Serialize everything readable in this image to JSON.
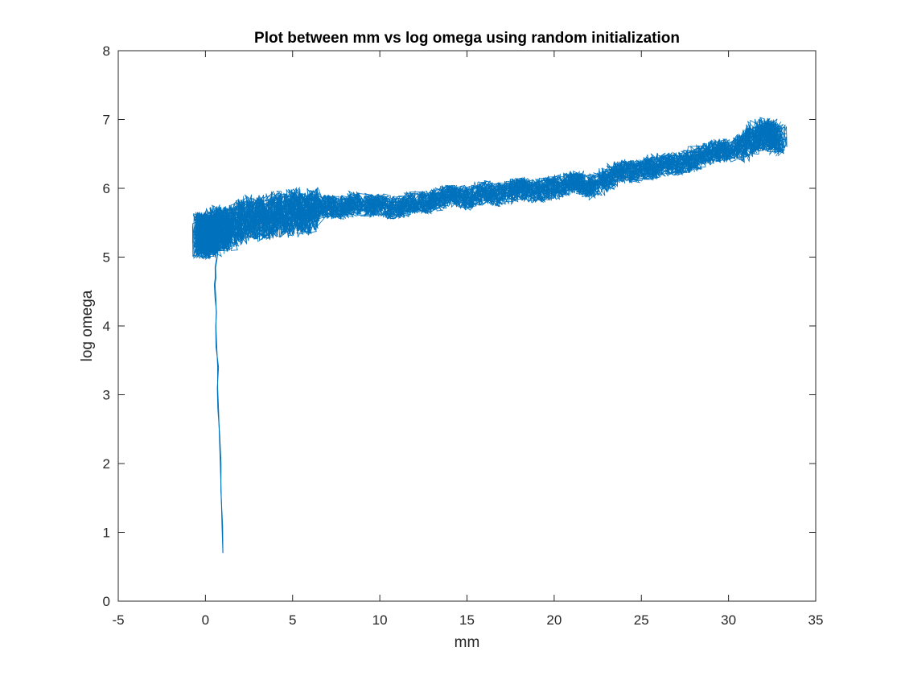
{
  "chart_data": {
    "type": "line",
    "title": "Plot between mm vs log omega using random initialization",
    "xlabel": "mm",
    "ylabel": "log omega",
    "xlim": [
      -5,
      35
    ],
    "ylim": [
      0,
      8
    ],
    "xticks": [
      -5,
      0,
      5,
      10,
      15,
      20,
      25,
      30,
      35
    ],
    "yticks": [
      0,
      1,
      2,
      3,
      4,
      5,
      6,
      7,
      8
    ],
    "xtick_labels": [
      "-5",
      "0",
      "5",
      "10",
      "15",
      "20",
      "25",
      "30",
      "35"
    ],
    "ytick_labels": [
      "0",
      "1",
      "2",
      "3",
      "4",
      "5",
      "6",
      "7",
      "8"
    ],
    "grid": false,
    "line_color": "#0072BD",
    "series": [
      {
        "x": [
          1.0,
          0.95,
          0.9,
          0.85,
          0.8,
          0.75,
          0.7,
          0.7,
          0.65,
          0.6,
          0.62,
          0.6,
          0.55,
          0.6,
          0.58,
          0.65,
          0.7,
          0.72,
          0.68,
          0.75,
          0.8,
          0.6,
          1.0,
          1.2,
          1.4,
          1.0,
          0.5,
          0.0,
          -0.3,
          -0.2,
          0.2,
          0.6,
          1.1,
          1.6,
          2.2,
          2.8,
          3.4,
          4.0,
          4.6,
          5.2,
          5.8,
          6.3,
          7.0,
          7.8,
          8.6,
          9.4,
          10.2,
          11.0,
          11.8,
          12.6,
          13.4,
          14.2,
          15.0,
          15.8,
          16.6,
          17.4,
          18.2,
          19.0,
          19.8,
          20.6,
          21.4,
          22.2,
          23.0,
          23.8,
          24.6,
          25.4,
          26.2,
          27.0,
          27.8,
          28.6,
          29.4,
          30.2,
          31.0,
          31.6,
          32.2,
          32.6,
          33.0
        ],
        "y": [
          0.7,
          1.1,
          1.6,
          2.0,
          2.4,
          2.8,
          3.1,
          3.4,
          3.7,
          4.0,
          4.2,
          4.4,
          4.6,
          4.7,
          4.85,
          4.95,
          5.05,
          5.15,
          5.25,
          5.35,
          5.4,
          5.5,
          5.3,
          5.2,
          5.1,
          5.4,
          5.3,
          5.3,
          5.3,
          5.35,
          5.3,
          5.45,
          5.4,
          5.45,
          5.55,
          5.6,
          5.55,
          5.65,
          5.6,
          5.7,
          5.6,
          5.7,
          5.75,
          5.7,
          5.8,
          5.75,
          5.75,
          5.7,
          5.8,
          5.8,
          5.85,
          5.9,
          5.85,
          5.95,
          5.9,
          5.95,
          6.0,
          5.95,
          6.0,
          6.05,
          6.1,
          6.0,
          6.15,
          6.25,
          6.25,
          6.3,
          6.35,
          6.35,
          6.4,
          6.5,
          6.55,
          6.55,
          6.65,
          6.75,
          6.8,
          6.75,
          6.7
        ]
      }
    ]
  }
}
